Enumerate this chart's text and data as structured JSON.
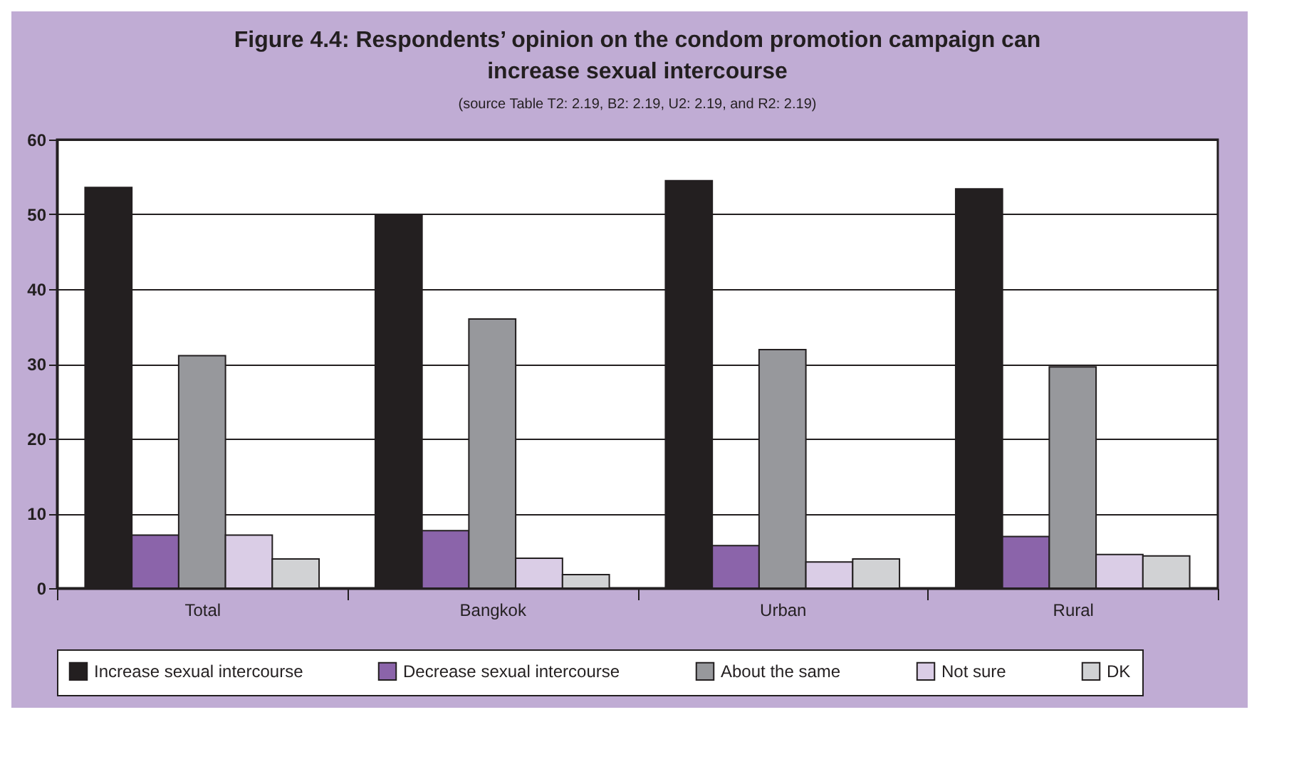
{
  "chart_data": {
    "type": "bar",
    "title": "Figure 4.4: Respondents’ opinion on the condom promotion campaign can increase sexual intercourse",
    "annotations": [
      "(source Table T2: 2.19, B2: 2.19, U2: 2.19, and R2: 2.19)"
    ],
    "categories": [
      "Total",
      "Bangkok",
      "Urban",
      "Rural"
    ],
    "series": [
      {
        "name": "Increase sexual intercourse",
        "color": "#231f20",
        "values": [
          53.6,
          50.0,
          54.5,
          53.4
        ]
      },
      {
        "name": "Decrease sexual intercourse",
        "color": "#8b64aa",
        "values": [
          7.1,
          7.7,
          5.7,
          6.9
        ]
      },
      {
        "name": "About the same",
        "color": "#97989c",
        "values": [
          31.1,
          36.0,
          31.9,
          29.6
        ]
      },
      {
        "name": "Not sure",
        "color": "#dacde6",
        "values": [
          7.1,
          4.0,
          3.5,
          4.5
        ]
      },
      {
        "name": "DK",
        "color": "#d1d2d4",
        "values": [
          3.9,
          1.8,
          3.9,
          4.3
        ]
      }
    ],
    "ylim": [
      0,
      60
    ],
    "yticks": [
      0,
      10,
      20,
      30,
      40,
      50,
      60
    ],
    "grid": "y",
    "legend": "bottom"
  }
}
